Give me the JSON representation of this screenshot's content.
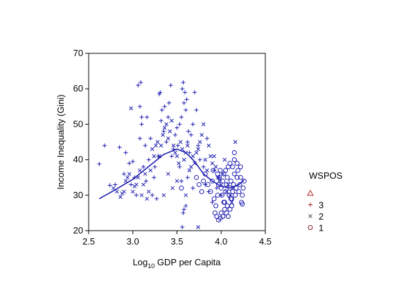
{
  "chart_data": {
    "type": "scatter",
    "xlabel_prefix": "Log",
    "xlabel_sub": "10",
    "xlabel_rest": " GDP per Capita",
    "ylabel": "Income Inequality (Gini)",
    "xlim": [
      2.5,
      4.5
    ],
    "ylim": [
      20,
      70
    ],
    "x_ticks": [
      "2.5",
      "3.0",
      "3.5",
      "4.0",
      "4.5"
    ],
    "y_ticks": [
      "20",
      "30",
      "40",
      "50",
      "60",
      "70"
    ],
    "grid": false,
    "legend": {
      "title": "WSPOS",
      "placement": "right",
      "entries": [
        {
          "marker": "triangle",
          "label": ""
        },
        {
          "marker": "plus",
          "label": "3"
        },
        {
          "marker": "x",
          "label": "2"
        },
        {
          "marker": "circle",
          "label": "1"
        }
      ]
    },
    "colors": {
      "points": "#1c1cb0",
      "triangle": "#b22222",
      "plus": "#b22222",
      "circle": "#8b1a1a",
      "x": "#505050"
    },
    "series": [
      {
        "name": "3",
        "marker": "plus",
        "points": [
          [
            2.62,
            38.8
          ],
          [
            2.68,
            44
          ],
          [
            2.74,
            32.8
          ],
          [
            2.8,
            33
          ],
          [
            2.85,
            43.5
          ],
          [
            2.9,
            36
          ],
          [
            2.92,
            42
          ],
          [
            2.96,
            39
          ],
          [
            2.98,
            33
          ],
          [
            3.0,
            39.5
          ],
          [
            3.02,
            35
          ],
          [
            3.04,
            30
          ],
          [
            3.06,
            61
          ],
          [
            3.08,
            55
          ],
          [
            3.08,
            46
          ],
          [
            3.09,
            61.8
          ],
          [
            3.1,
            52
          ],
          [
            3.1,
            50
          ],
          [
            3.12,
            38
          ],
          [
            3.14,
            44
          ],
          [
            3.15,
            34
          ],
          [
            3.16,
            52
          ],
          [
            3.18,
            40
          ],
          [
            3.2,
            46
          ],
          [
            3.22,
            30
          ],
          [
            3.24,
            35
          ],
          [
            3.25,
            38
          ],
          [
            3.27,
            29
          ],
          [
            3.29,
            41
          ],
          [
            3.3,
            58.5
          ],
          [
            3.31,
            59
          ],
          [
            3.32,
            51
          ],
          [
            3.33,
            54
          ],
          [
            3.35,
            48
          ],
          [
            3.36,
            55
          ],
          [
            3.38,
            45
          ],
          [
            3.4,
            52
          ],
          [
            3.41,
            56
          ],
          [
            3.43,
            61
          ],
          [
            3.44,
            41
          ],
          [
            3.46,
            43
          ],
          [
            3.48,
            47
          ],
          [
            3.5,
            49
          ],
          [
            3.51,
            44
          ],
          [
            3.53,
            50
          ],
          [
            3.55,
            52
          ],
          [
            3.56,
            60
          ],
          [
            3.57,
            61.8
          ],
          [
            3.58,
            56
          ],
          [
            3.59,
            59
          ],
          [
            3.6,
            54
          ],
          [
            3.61,
            57
          ],
          [
            3.62,
            45
          ],
          [
            3.63,
            48
          ],
          [
            3.57,
            25
          ],
          [
            3.58,
            26
          ],
          [
            3.6,
            27
          ],
          [
            3.56,
            21
          ],
          [
            3.64,
            42
          ],
          [
            3.66,
            47
          ],
          [
            3.68,
            50
          ],
          [
            3.7,
            59
          ],
          [
            3.72,
            54
          ],
          [
            3.74,
            44
          ],
          [
            3.76,
            40
          ],
          [
            3.8,
            38
          ],
          [
            3.82,
            33
          ],
          [
            3.84,
            46
          ],
          [
            3.86,
            31
          ],
          [
            3.9,
            28
          ],
          [
            3.92,
            37
          ],
          [
            3.95,
            32
          ],
          [
            3.98,
            35
          ],
          [
            4.0,
            30
          ],
          [
            3.55,
            34
          ],
          [
            3.53,
            38
          ],
          [
            3.62,
            35
          ],
          [
            3.68,
            32
          ]
        ]
      },
      {
        "name": "2",
        "marker": "x",
        "points": [
          [
            2.78,
            32
          ],
          [
            2.82,
            31
          ],
          [
            2.86,
            29.5
          ],
          [
            2.88,
            30.5
          ],
          [
            2.9,
            31
          ],
          [
            2.92,
            34
          ],
          [
            2.94,
            35
          ],
          [
            2.96,
            36
          ],
          [
            2.98,
            54.5
          ],
          [
            3.0,
            31
          ],
          [
            3.02,
            32.5
          ],
          [
            3.04,
            33
          ],
          [
            3.06,
            35
          ],
          [
            3.08,
            37
          ],
          [
            3.1,
            30
          ],
          [
            3.12,
            33
          ],
          [
            3.14,
            36
          ],
          [
            3.16,
            29
          ],
          [
            3.18,
            31
          ],
          [
            3.2,
            37
          ],
          [
            3.22,
            43
          ],
          [
            3.24,
            41
          ],
          [
            3.26,
            44
          ],
          [
            3.28,
            45
          ],
          [
            3.3,
            41
          ],
          [
            3.32,
            44
          ],
          [
            3.34,
            47
          ],
          [
            3.36,
            49
          ],
          [
            3.38,
            50
          ],
          [
            3.4,
            46
          ],
          [
            3.42,
            48
          ],
          [
            3.44,
            51
          ],
          [
            3.46,
            44
          ],
          [
            3.48,
            42
          ],
          [
            3.5,
            41
          ],
          [
            3.52,
            39
          ],
          [
            3.54,
            45
          ],
          [
            3.56,
            43
          ],
          [
            3.58,
            40
          ],
          [
            3.6,
            42
          ],
          [
            3.62,
            44
          ],
          [
            3.64,
            37
          ],
          [
            3.66,
            38
          ],
          [
            3.68,
            41
          ],
          [
            3.7,
            39
          ],
          [
            3.72,
            42
          ],
          [
            3.74,
            43
          ],
          [
            3.76,
            45
          ],
          [
            3.78,
            47
          ],
          [
            3.8,
            50
          ],
          [
            3.82,
            40
          ],
          [
            3.84,
            37
          ],
          [
            3.86,
            44
          ],
          [
            3.88,
            41
          ],
          [
            3.9,
            39
          ],
          [
            3.92,
            41
          ],
          [
            3.94,
            38
          ],
          [
            3.96,
            35
          ],
          [
            3.98,
            34
          ],
          [
            4.0,
            33
          ],
          [
            4.02,
            36
          ],
          [
            4.04,
            40
          ],
          [
            4.06,
            31
          ],
          [
            4.08,
            33
          ],
          [
            4.1,
            30
          ],
          [
            4.12,
            28
          ],
          [
            4.14,
            32
          ],
          [
            4.16,
            45
          ],
          [
            3.74,
            21
          ],
          [
            3.6,
            30
          ],
          [
            3.5,
            34
          ],
          [
            3.45,
            32
          ],
          [
            3.4,
            36
          ],
          [
            3.35,
            30
          ]
        ]
      },
      {
        "name": "1",
        "marker": "circle",
        "points": [
          [
            3.55,
            32
          ],
          [
            3.72,
            35
          ],
          [
            3.75,
            33
          ],
          [
            3.78,
            31
          ],
          [
            3.8,
            34
          ],
          [
            3.82,
            36
          ],
          [
            3.85,
            33
          ],
          [
            3.88,
            31
          ],
          [
            3.9,
            34
          ],
          [
            3.92,
            29
          ],
          [
            3.94,
            27
          ],
          [
            3.96,
            30
          ],
          [
            3.97,
            33
          ],
          [
            3.98,
            35
          ],
          [
            3.99,
            37
          ],
          [
            4.0,
            32
          ],
          [
            4.01,
            30
          ],
          [
            4.02,
            34
          ],
          [
            4.03,
            36
          ],
          [
            4.04,
            28
          ],
          [
            4.05,
            31
          ],
          [
            4.06,
            33
          ],
          [
            4.07,
            35
          ],
          [
            4.08,
            38
          ],
          [
            4.09,
            30
          ],
          [
            4.1,
            32
          ],
          [
            4.11,
            34
          ],
          [
            4.12,
            29
          ],
          [
            4.13,
            31
          ],
          [
            4.14,
            33
          ],
          [
            4.15,
            36
          ],
          [
            4.16,
            30
          ],
          [
            4.17,
            32
          ],
          [
            4.18,
            35
          ],
          [
            4.19,
            37
          ],
          [
            4.2,
            31
          ],
          [
            4.21,
            33
          ],
          [
            4.22,
            35
          ],
          [
            4.23,
            28
          ],
          [
            4.24,
            30
          ],
          [
            4.25,
            32
          ],
          [
            3.93,
            25
          ],
          [
            3.95,
            24
          ],
          [
            3.97,
            23
          ],
          [
            3.99,
            23.5
          ],
          [
            4.0,
            25
          ],
          [
            4.02,
            24
          ],
          [
            4.04,
            26
          ],
          [
            4.06,
            25
          ],
          [
            4.08,
            24
          ],
          [
            4.1,
            26
          ],
          [
            4.12,
            27
          ],
          [
            4.15,
            40
          ],
          [
            4.18,
            39
          ],
          [
            4.22,
            38
          ],
          [
            4.24,
            27.5
          ],
          [
            4.26,
            34
          ],
          [
            4.05,
            37
          ],
          [
            4.1,
            39
          ],
          [
            4.13,
            38
          ],
          [
            4.15,
            42
          ],
          [
            4.11,
            29
          ],
          [
            4.07,
            27
          ],
          [
            4.03,
            28
          ],
          [
            3.96,
            36
          ],
          [
            3.91,
            37
          ]
        ]
      }
    ],
    "fit_line": [
      [
        2.62,
        29
      ],
      [
        2.8,
        31.5
      ],
      [
        3.0,
        34.5
      ],
      [
        3.2,
        38.5
      ],
      [
        3.35,
        41.5
      ],
      [
        3.5,
        43
      ],
      [
        3.6,
        42
      ],
      [
        3.7,
        39.5
      ],
      [
        3.8,
        36
      ],
      [
        3.9,
        34
      ],
      [
        4.0,
        32.5
      ],
      [
        4.1,
        32
      ],
      [
        4.2,
        33
      ],
      [
        4.26,
        34.3
      ]
    ]
  }
}
